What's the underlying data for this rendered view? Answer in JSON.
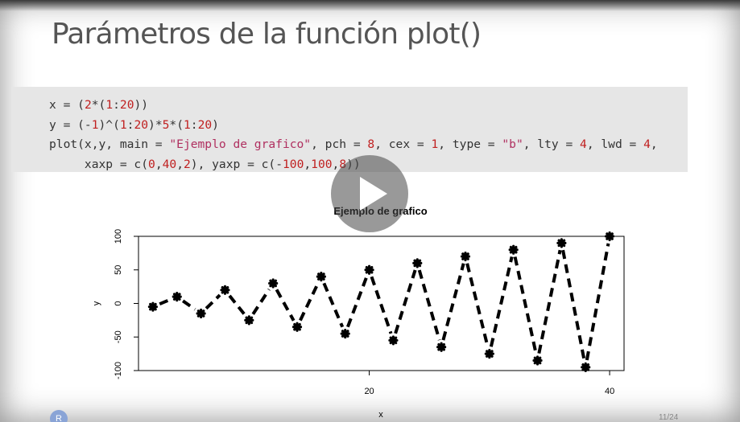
{
  "slide": {
    "title": "Parámetros de la función plot()",
    "page_indicator": "11/24",
    "logo_text": "R",
    "code_lines": [
      [
        {
          "t": "x = ("
        },
        {
          "t": "2",
          "c": "num"
        },
        {
          "t": "*("
        },
        {
          "t": "1",
          "c": "num"
        },
        {
          "t": ":"
        },
        {
          "t": "20",
          "c": "num"
        },
        {
          "t": "))"
        }
      ],
      [
        {
          "t": "y = (-"
        },
        {
          "t": "1",
          "c": "num"
        },
        {
          "t": ")^("
        },
        {
          "t": "1",
          "c": "num"
        },
        {
          "t": ":"
        },
        {
          "t": "20",
          "c": "num"
        },
        {
          "t": ")*"
        },
        {
          "t": "5",
          "c": "num"
        },
        {
          "t": "*("
        },
        {
          "t": "1",
          "c": "num"
        },
        {
          "t": ":"
        },
        {
          "t": "20",
          "c": "num"
        },
        {
          "t": ")"
        }
      ],
      [
        {
          "t": "plot(x,y, main = "
        },
        {
          "t": "\"Ejemplo de grafico\"",
          "c": "str"
        },
        {
          "t": ", pch = "
        },
        {
          "t": "8",
          "c": "num"
        },
        {
          "t": ", cex = "
        },
        {
          "t": "1",
          "c": "num"
        },
        {
          "t": ", type = "
        },
        {
          "t": "\"b\"",
          "c": "str"
        },
        {
          "t": ", lty = "
        },
        {
          "t": "4",
          "c": "num"
        },
        {
          "t": ", lwd = "
        },
        {
          "t": "4",
          "c": "num"
        },
        {
          "t": ","
        }
      ],
      [
        {
          "t": "     xaxp = c("
        },
        {
          "t": "0",
          "c": "num"
        },
        {
          "t": ","
        },
        {
          "t": "40",
          "c": "num"
        },
        {
          "t": ","
        },
        {
          "t": "2",
          "c": "num"
        },
        {
          "t": "), yaxp = c(-"
        },
        {
          "t": "100",
          "c": "num"
        },
        {
          "t": ","
        },
        {
          "t": "100",
          "c": "num"
        },
        {
          "t": ","
        },
        {
          "t": "8",
          "c": "num"
        },
        {
          "t": "))"
        }
      ]
    ]
  },
  "colors": {
    "code_bg": "#e6e6e6",
    "string": "#b03060",
    "number": "#c02020",
    "line": "#000000"
  },
  "chart_data": {
    "type": "line",
    "title": "Ejemplo de grafico",
    "xlabel": "x",
    "ylabel": "y",
    "x": [
      2,
      4,
      6,
      8,
      10,
      12,
      14,
      16,
      18,
      20,
      22,
      24,
      26,
      28,
      30,
      32,
      34,
      36,
      38,
      40
    ],
    "y": [
      -5,
      10,
      -15,
      20,
      -25,
      30,
      -35,
      40,
      -45,
      50,
      -55,
      60,
      -65,
      70,
      -75,
      80,
      -85,
      90,
      -95,
      100
    ],
    "xlim": [
      0.8,
      41.2
    ],
    "ylim": [
      -100,
      100
    ],
    "x_ticks": [
      20,
      40
    ],
    "y_ticks": [
      -100,
      -50,
      0,
      50,
      100
    ],
    "grid": false,
    "line_style": "dashed",
    "marker": "star"
  },
  "player": {
    "play_icon": "play-icon"
  }
}
